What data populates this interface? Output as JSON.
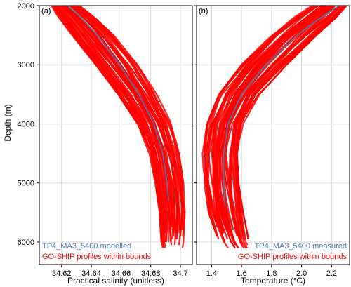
{
  "chart_data": [
    {
      "type": "line",
      "panel_label": "(a)",
      "xlabel": "Practical salinity (unitless)",
      "ylabel": "Depth (m)",
      "xlim": [
        34.605,
        34.708
      ],
      "ylim": [
        6380,
        2000
      ],
      "x_ticks": [
        34.62,
        34.64,
        34.66,
        34.68,
        34.7
      ],
      "x_tick_labels": [
        "34.62",
        "34.64",
        "34.66",
        "34.68",
        "34.7"
      ],
      "y_ticks": [
        2000,
        3000,
        4000,
        5000,
        6000
      ],
      "y_tick_labels": [
        "2000",
        "3000",
        "4000",
        "5000",
        "6000"
      ],
      "grid": true,
      "legend_position": "bottom-left",
      "series": [
        {
          "name": "TP4_MA3_5400 modelled",
          "color": "#4a7ab0",
          "depth": [
            2000,
            2200,
            2500,
            3000,
            3500,
            4000,
            4500,
            5000,
            5300
          ],
          "values": [
            34.624,
            34.633,
            34.644,
            34.659,
            34.672,
            34.682,
            34.688,
            34.691,
            34.692
          ]
        },
        {
          "name": "GO-SHIP profiles within bounds",
          "color": "#ff0000",
          "depth": [
            2000,
            2200,
            2500,
            3000,
            3500,
            4000,
            4500,
            5000,
            5500,
            6000,
            6150
          ],
          "lower": [
            34.613,
            34.618,
            34.627,
            34.643,
            34.658,
            34.671,
            34.679,
            34.683,
            34.686,
            34.687,
            34.688
          ],
          "upper": [
            34.632,
            34.642,
            34.655,
            34.671,
            34.684,
            34.694,
            34.699,
            34.702,
            34.703,
            34.702,
            34.701
          ]
        }
      ]
    },
    {
      "type": "line",
      "panel_label": "(b)",
      "xlabel": "Temperature (°C)",
      "xlim": [
        1.3,
        2.32
      ],
      "ylim": [
        6380,
        2000
      ],
      "x_ticks": [
        1.4,
        1.6,
        1.8,
        2.0,
        2.2
      ],
      "x_tick_labels": [
        "1.4",
        "1.6",
        "1.8",
        "2.0",
        "2.2"
      ],
      "y_ticks": [
        2000,
        3000,
        4000,
        5000,
        6000
      ],
      "grid": true,
      "legend_position": "bottom-right",
      "series": [
        {
          "name": "TP4_MA3_5400 measured",
          "color": "#4a7ab0",
          "depth": [
            2000,
            2200,
            2500,
            3000,
            3500,
            4000,
            4500,
            5000,
            5400
          ],
          "values": [
            2.25,
            2.13,
            1.97,
            1.76,
            1.6,
            1.51,
            1.48,
            1.48,
            1.49
          ]
        },
        {
          "name": "GO-SHIP profiles within bounds",
          "color": "#ff0000",
          "depth": [
            2000,
            2200,
            2500,
            3000,
            3500,
            4000,
            4500,
            5000,
            5500,
            6000,
            6150
          ],
          "lower": [
            2.07,
            1.95,
            1.8,
            1.6,
            1.45,
            1.37,
            1.34,
            1.35,
            1.38,
            1.45,
            1.49
          ],
          "upper": [
            2.3,
            2.23,
            2.1,
            1.9,
            1.72,
            1.61,
            1.57,
            1.58,
            1.61,
            1.65,
            1.68
          ]
        }
      ]
    }
  ]
}
